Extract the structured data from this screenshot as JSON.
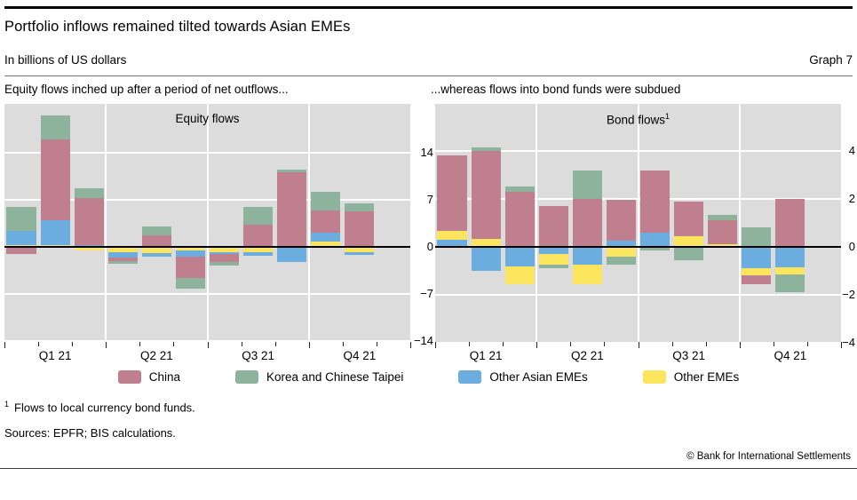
{
  "header": {
    "title": "Portfolio inflows remained tilted towards Asian EMEs",
    "subtitle": "In billions of US dollars",
    "graph_label": "Graph 7"
  },
  "colors": {
    "china": "#c07f8f",
    "korea": "#8db39d",
    "other_asian": "#6caddf",
    "other_emes": "#fbe55e",
    "plot_bg": "#dcdcdc",
    "grid": "#ffffff",
    "zero_line": "#000000"
  },
  "chart_data": [
    {
      "type": "bar",
      "stacked": true,
      "panel_heading": "Equity flows inched up after a period of net outflows...",
      "title": "Equity flows",
      "title_sup": "",
      "categories": [
        "Q1 21",
        "Q2 21",
        "Q3 21",
        "Q4 21"
      ],
      "bars_per_quarter": [
        3,
        3,
        3,
        2
      ],
      "slots_per_quarter": 3,
      "series": [
        {
          "name": "China",
          "key": "china",
          "values": [
            -1.1,
            11.9,
            7.0,
            -0.45,
            1.75,
            -3.2,
            -1.2,
            3.3,
            11.0,
            3.3,
            5.3
          ]
        },
        {
          "name": "Korea and Chinese Taipei",
          "key": "korea",
          "values": [
            3.5,
            3.6,
            1.4,
            -0.35,
            1.3,
            -1.65,
            -0.5,
            2.65,
            0.5,
            2.8,
            1.2
          ]
        },
        {
          "name": "Other Asian EMEs",
          "key": "other_asian",
          "values": [
            2.1,
            3.7,
            0.25,
            -0.85,
            -0.55,
            -0.9,
            -0.2,
            -0.5,
            -2.2,
            1.3,
            -0.5
          ]
        },
        {
          "name": "Other EMEs",
          "key": "other_emes",
          "values": [
            0.3,
            0.3,
            -0.5,
            -0.8,
            -0.9,
            -0.5,
            -0.85,
            -0.8,
            0,
            0.8,
            -0.75
          ]
        }
      ],
      "stack_order_from_axis": [
        "other_emes",
        "other_asian",
        "china",
        "korea"
      ],
      "yticks": [
        14,
        7,
        0,
        -7,
        -14
      ],
      "ylim": [
        -14.1,
        21.2
      ],
      "grid": true,
      "ylabel": "",
      "xlabel": ""
    },
    {
      "type": "bar",
      "stacked": true,
      "panel_heading": "...whereas flows into bond funds were subdued",
      "title": "Bond flows",
      "title_sup": "1",
      "categories": [
        "Q1 21",
        "Q2 21",
        "Q3 21",
        "Q4 21"
      ],
      "bars_per_quarter": [
        3,
        3,
        3,
        2
      ],
      "slots_per_quarter": 3,
      "series": [
        {
          "name": "China",
          "key": "china",
          "values": [
            3.15,
            3.65,
            2.3,
            1.7,
            2.0,
            1.7,
            2.6,
            1.45,
            1.0,
            -0.35,
            2.0
          ]
        },
        {
          "name": "Korea and Chinese Taipei",
          "key": "korea",
          "values": [
            0,
            0.15,
            0.2,
            -0.15,
            1.2,
            -0.35,
            -0.15,
            -0.55,
            0.25,
            0.8,
            -0.75
          ]
        },
        {
          "name": "Other Asian EMEs",
          "key": "other_asian",
          "values": [
            0.3,
            -1.0,
            -0.8,
            -0.3,
            -0.75,
            0.25,
            0.6,
            0,
            0,
            -0.9,
            -0.85
          ]
        },
        {
          "name": "Other EMEs",
          "key": "other_emes",
          "values": [
            0.35,
            0.35,
            -0.75,
            -0.45,
            -0.8,
            -0.4,
            0,
            0.45,
            0.1,
            -0.3,
            -0.3
          ]
        }
      ],
      "stack_order_from_axis": [
        "other_asian",
        "other_emes",
        "china",
        "korea"
      ],
      "yticks": [
        4,
        2,
        0,
        -2,
        -4
      ],
      "ylim": [
        -3.96,
        5.96
      ],
      "grid": true,
      "ylabel": "",
      "xlabel": ""
    }
  ],
  "legend": {
    "items": [
      {
        "label": "China",
        "key": "china"
      },
      {
        "label": "Korea and Chinese Taipei",
        "key": "korea"
      },
      {
        "label": "Other Asian EMEs",
        "key": "other_asian"
      },
      {
        "label": "Other EMEs",
        "key": "other_emes"
      }
    ]
  },
  "footnote": {
    "sup": "1",
    "text": "Flows to local currency bond funds."
  },
  "sources": "Sources: EPFR; BIS calculations.",
  "copyright": "© Bank for International Settlements"
}
